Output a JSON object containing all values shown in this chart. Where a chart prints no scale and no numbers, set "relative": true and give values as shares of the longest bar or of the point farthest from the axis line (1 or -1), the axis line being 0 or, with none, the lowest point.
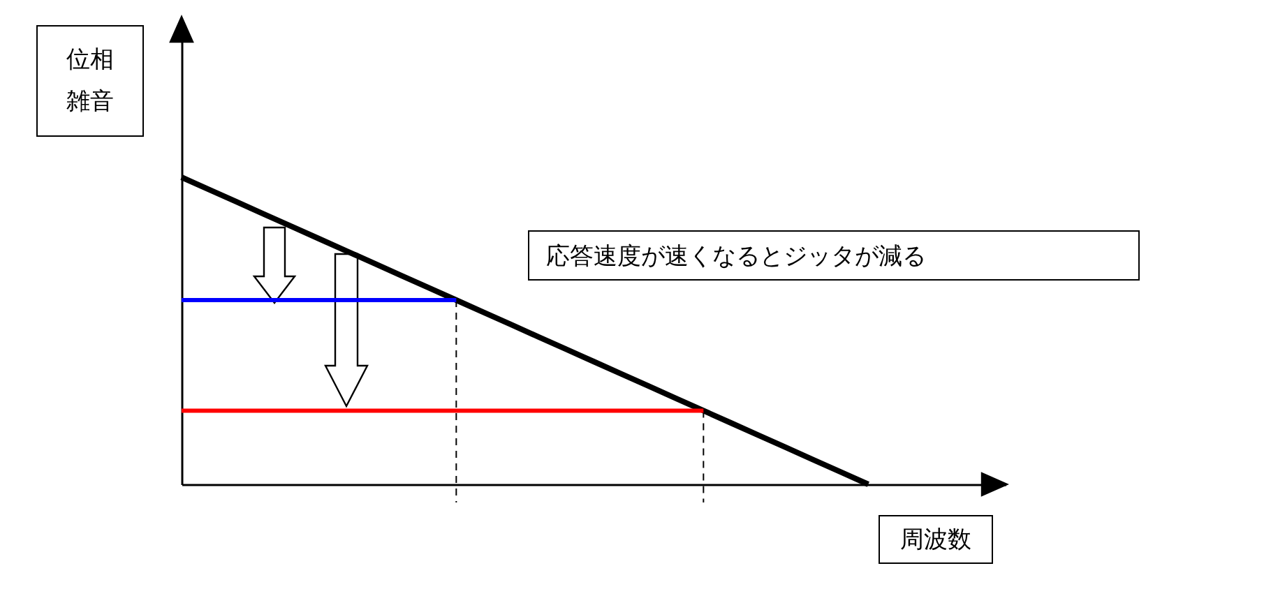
{
  "chart_data": {
    "type": "line",
    "relative": true,
    "xlabel": "周波数",
    "ylabel": "位相雑音",
    "annotations": [
      "応答速度が速くなるとジッタが減る"
    ],
    "categories": [
      null,
      null,
      null,
      null,
      null,
      null,
      null,
      null,
      null,
      null,
      null,
      null,
      null,
      null,
      null,
      null,
      null,
      null,
      null,
      null,
      null,
      null,
      null,
      null,
      null,
      null
    ],
    "series": [
      {
        "color": "#000000",
        "values": [
          1,
          0.96,
          0.92,
          0.88,
          0.84,
          0.8,
          0.76,
          0.72,
          0.68,
          0.64,
          0.6,
          0.56,
          0.52,
          0.48,
          0.44,
          0.4,
          0.36,
          0.32,
          0.28,
          0.24,
          0.2,
          0.16,
          0.12,
          0.08,
          0.04,
          0
        ]
      },
      {
        "color": "#0000ff",
        "values": [
          0.6,
          0.6,
          0.6,
          0.6,
          0.6,
          0.6,
          0.6,
          0.6,
          0.6,
          0.6,
          0.6,
          null,
          null,
          null,
          null,
          null,
          null,
          null,
          null,
          null,
          null,
          null,
          null,
          null,
          null,
          null
        ]
      },
      {
        "color": "#ff0000",
        "values": [
          0.24,
          0.24,
          0.24,
          0.24,
          0.24,
          0.24,
          0.24,
          0.24,
          0.24,
          0.24,
          0.24,
          0.24,
          0.24,
          0.24,
          0.24,
          0.24,
          0.24,
          0.24,
          0.24,
          0.24,
          null,
          null,
          null,
          null,
          null,
          null
        ]
      }
    ]
  }
}
